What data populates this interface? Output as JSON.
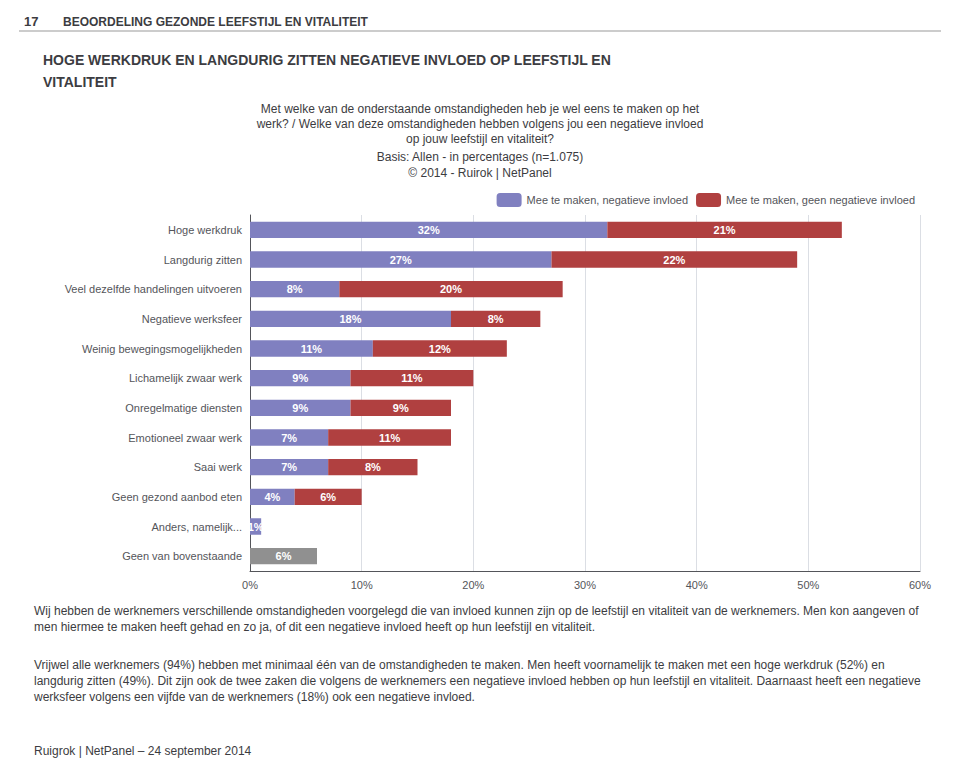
{
  "chart_data": {
    "type": "bar",
    "orientation": "horizontal",
    "stacked": true,
    "data_labels": true,
    "grid": true,
    "legend": "upper right",
    "title": [
      "HOGE WERKDRUK EN LANGDURIG ZITTEN NEGATIEVE INVLOED OP LEEFSTIJL EN",
      "VITALITEIT"
    ],
    "subtitle": [
      "Met welke van de onderstaande omstandigheden heb je wel eens te maken op het",
      "werk? / Welke van deze omstandigheden hebben volgens jou een negatieve invloed",
      "op jouw leefstijl en vitaliteit?"
    ],
    "annotations": [
      "17",
      "BEOORDELING GEZONDE LEEFSTIJL EN VITALITEIT",
      "Basis: Allen - in percentages (n=1.075)",
      "© 2014 - Ruirok | NetPanel",
      "Wij hebben de werknemers verschillende omstandigheden voorgelegd die van invloed kunnen zijn op de leefstijl en vitaliteit van de werknemers. Men kon aangeven of men hiermee te maken heeft gehad en zo ja, of dit een negatieve invloed heeft op hun leefstijl en vitaliteit.",
      "Vrijwel alle werknemers (94%) hebben met minimaal één van de omstandigheden te maken. Men heeft voornamelijk te maken met een hoge werkdruk (52%) en langdurig zitten (49%). Dit zijn ook de twee zaken die volgens de werknemers een negatieve invloed hebben op hun leefstijl en vitaliteit. Daarnaast heeft een negatieve werksfeer volgens een vijfde van de werknemers (18%) ook een negatieve invloed.",
      "Ruigrok | NetPanel – 24 september 2014"
    ],
    "categories": [
      "Hoge werkdruk",
      "Langdurig zitten",
      "Veel dezelfde handelingen uitvoeren",
      "Negatieve werksfeer",
      "Weinig bewegingsmogelijkheden",
      "Lichamelijk zwaar werk",
      "Onregelmatige diensten",
      "Emotioneel zwaar werk",
      "Saai werk",
      "Geen gezond aanbod eten",
      "Anders, namelijk...",
      "Geen van bovenstaande"
    ],
    "series": [
      {
        "name": "Mee te maken, negatieve invloed",
        "color": "#8080c0",
        "values": [
          32,
          27,
          8,
          18,
          11,
          9,
          9,
          7,
          7,
          4,
          1,
          0
        ],
        "value_labels": [
          "32%",
          "27%",
          "8%",
          "18%",
          "11%",
          "9%",
          "9%",
          "7%",
          "7%",
          "4%",
          "1%",
          null
        ]
      },
      {
        "name": "Mee te maken, geen negatieve invloed",
        "color": "#b04040",
        "colors": [
          "#b04040",
          "#b04040",
          "#b04040",
          "#b04040",
          "#b04040",
          "#b04040",
          "#b04040",
          "#b04040",
          "#b04040",
          "#b04040",
          "#b04040",
          "#909090"
        ],
        "values": [
          21,
          22,
          20,
          8,
          12,
          11,
          9,
          11,
          8,
          6,
          0,
          6
        ],
        "value_labels": [
          "21%",
          "22%",
          "20%",
          "8%",
          "12%",
          "11%",
          "9%",
          "11%",
          "8%",
          "6%",
          null,
          "6%"
        ]
      }
    ],
    "xlim": [
      0,
      60
    ],
    "xticks": [
      {
        "value": 0,
        "label": "0%"
      },
      {
        "value": 10,
        "label": "10%"
      },
      {
        "value": 20,
        "label": "20%"
      },
      {
        "value": 30,
        "label": "30%"
      },
      {
        "value": 40,
        "label": "40%"
      },
      {
        "value": 50,
        "label": "50%"
      },
      {
        "value": 60,
        "label": "60%"
      }
    ]
  }
}
